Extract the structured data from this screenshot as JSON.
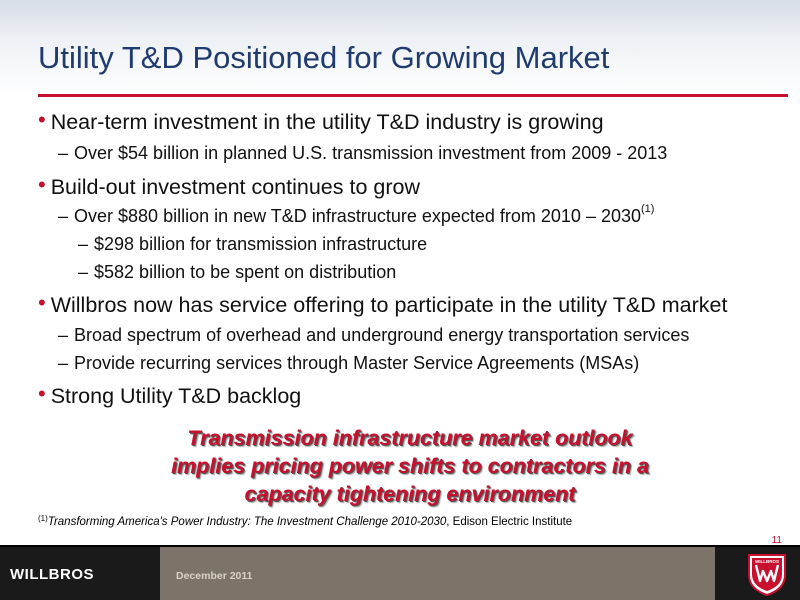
{
  "title": "Utility T&D Positioned for Growing Market",
  "bullets": {
    "b1": "Near-term investment in the utility T&D industry is growing",
    "b1_s1": "Over $54 billion in planned U.S. transmission investment from 2009 - 2013",
    "b2": "Build-out investment continues to grow",
    "b2_s1": "Over $880 billion in new T&D infrastructure expected from 2010 – 2030",
    "b2_s1_ref": "(1)",
    "b2_s1_s1": "$298 billion for transmission infrastructure",
    "b2_s1_s2": "$582 billion to be spent on distribution",
    "b3": "Willbros now has service offering to participate in the utility T&D market",
    "b3_s1": "Broad spectrum of overhead and underground energy transportation services",
    "b3_s2": "Provide recurring services through  Master Service Agreements (MSAs)",
    "b4": "Strong Utility T&D backlog"
  },
  "callout": {
    "line1": "Transmission infrastructure market outlook",
    "line2": "implies pricing power shifts to contractors in a",
    "line3": "capacity tightening environment"
  },
  "footnote": {
    "ref": "(1)",
    "source_title": "Transforming America's Power Industry: The Investment Challenge 2010-2030",
    "source_org": ", Edison Electric Institute"
  },
  "page_number": "11",
  "footer": {
    "logo": "WILLBROS",
    "date": "December 2011",
    "seal_text": "WILLBROS"
  },
  "colors": {
    "title": "#1f3b6f",
    "accent_red": "#c8102e",
    "footer_dark": "#1a1a1a",
    "footer_taupe": "#7d7469"
  },
  "icons": {
    "bullet": "red-dot-bullet-icon",
    "seal": "willbros-seal-icon"
  }
}
